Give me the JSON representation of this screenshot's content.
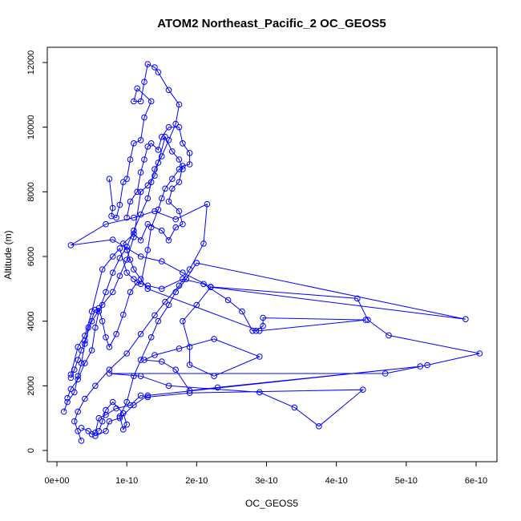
{
  "chart_data": {
    "type": "line",
    "title": "ATOM2 Northeast_Pacific_2 OC_GEOS5",
    "xlabel": "OC_GEOS5",
    "ylabel": "Altitude (m)",
    "xlim": [
      0,
      6e-10
    ],
    "ylim": [
      0,
      12000
    ],
    "xticks": [
      0,
      1e-10,
      2e-10,
      3e-10,
      4e-10,
      5e-10,
      6e-10
    ],
    "xtick_labels": [
      "0e+00",
      "1e-10",
      "2e-10",
      "3e-10",
      "4e-10",
      "5e-10",
      "6e-10"
    ],
    "yticks": [
      0,
      2000,
      4000,
      6000,
      8000,
      10000,
      12000
    ],
    "ytick_labels": [
      "0",
      "2000",
      "4000",
      "6000",
      "8000",
      "10000",
      "12000"
    ],
    "grid": false,
    "series": [
      {
        "color": "#0000ff",
        "points": [
          [
            3.5e-11,
            700
          ],
          [
            4.5e-11,
            600
          ],
          [
            5e-11,
            500
          ],
          [
            5.5e-11,
            550
          ],
          [
            6e-11,
            1000
          ],
          [
            7e-11,
            1100
          ],
          [
            8.5e-11,
            1300
          ],
          [
            1.05e-10,
            1400
          ],
          [
            1.2e-10,
            1700
          ],
          [
            1.3e-10,
            1650
          ],
          [
            1.9e-10,
            1780
          ],
          [
            4.38e-10,
            1880
          ],
          [
            3.75e-10,
            750
          ],
          [
            3.4e-10,
            1330
          ],
          [
            2.9e-10,
            1800
          ],
          [
            1.6e-10,
            2000
          ],
          [
            1.2e-10,
            2300
          ],
          [
            7.5e-11,
            2380
          ],
          [
            4.7e-10,
            2380
          ],
          [
            5.3e-10,
            2640
          ],
          [
            6.05e-10,
            3000
          ],
          [
            4.75e-10,
            3560
          ],
          [
            4.45e-10,
            4040
          ],
          [
            4.3e-10,
            4700
          ],
          [
            2.2e-10,
            5060
          ],
          [
            1.8e-10,
            5500
          ],
          [
            1.5e-10,
            5850
          ],
          [
            1.2e-10,
            6000
          ],
          [
            8e-11,
            6520
          ],
          [
            2e-11,
            6350
          ],
          [
            7e-11,
            7000
          ],
          [
            1.1e-10,
            7200
          ],
          [
            1.4e-10,
            7400
          ],
          [
            1.7e-10,
            7150
          ],
          [
            2.15e-10,
            7620
          ],
          [
            2.1e-10,
            6400
          ],
          [
            1.9e-10,
            5600
          ],
          [
            1.75e-10,
            5100
          ],
          [
            1.55e-10,
            4600
          ],
          [
            1.4e-10,
            4180
          ],
          [
            1.2e-10,
            3600
          ],
          [
            1e-10,
            3000
          ],
          [
            7.5e-11,
            2500
          ],
          [
            5.5e-11,
            2000
          ],
          [
            4e-11,
            1600
          ],
          [
            3e-11,
            1200
          ],
          [
            2.5e-11,
            900
          ],
          [
            3e-11,
            600
          ],
          [
            3.5e-11,
            300
          ]
        ]
      },
      {
        "color": "#0000ff",
        "points": [
          [
            1.5e-11,
            1620
          ],
          [
            2e-11,
            1900
          ],
          [
            3e-11,
            2200
          ],
          [
            4e-11,
            2700
          ],
          [
            5e-11,
            3100
          ],
          [
            5.5e-11,
            3800
          ],
          [
            6e-11,
            4300
          ],
          [
            7e-11,
            4900
          ],
          [
            8e-11,
            5500
          ],
          [
            9e-11,
            5950
          ],
          [
            1e-10,
            6300
          ],
          [
            1.1e-10,
            6800
          ],
          [
            1.2e-10,
            7300
          ],
          [
            1.3e-10,
            7800
          ],
          [
            1.35e-10,
            8300
          ],
          [
            1.4e-10,
            8700
          ],
          [
            1.5e-10,
            9100
          ],
          [
            1.6e-10,
            9600
          ],
          [
            1.7e-10,
            10100
          ],
          [
            1.75e-10,
            10700
          ],
          [
            1.6e-10,
            11150
          ],
          [
            1.45e-10,
            11700
          ],
          [
            1.4e-10,
            11850
          ],
          [
            1.3e-10,
            11950
          ],
          [
            1.25e-10,
            11400
          ],
          [
            1.2e-10,
            10800
          ],
          [
            1.1e-10,
            10800
          ],
          [
            1.15e-10,
            11200
          ],
          [
            1.35e-10,
            10800
          ],
          [
            1.25e-10,
            10300
          ],
          [
            1.2e-10,
            9600
          ],
          [
            1.1e-10,
            9500
          ],
          [
            1.05e-10,
            9000
          ],
          [
            1e-10,
            8400
          ],
          [
            9.5e-11,
            8300
          ],
          [
            9e-11,
            7600
          ],
          [
            8.5e-11,
            7200
          ],
          [
            7.8e-11,
            7250
          ],
          [
            8e-11,
            7500
          ],
          [
            7.5e-11,
            8400
          ]
        ]
      },
      {
        "color": "#0000ff",
        "points": [
          [
            1e-11,
            1200
          ],
          [
            1.5e-11,
            1500
          ],
          [
            2.5e-11,
            1800
          ],
          [
            3e-11,
            2300
          ],
          [
            3.5e-11,
            2700
          ],
          [
            4e-11,
            3300
          ],
          [
            4.5e-11,
            3800
          ],
          [
            5.5e-11,
            4350
          ],
          [
            6e-11,
            4400
          ],
          [
            6.5e-11,
            4000
          ],
          [
            7e-11,
            3500
          ],
          [
            7.5e-11,
            3200
          ],
          [
            8.5e-11,
            3600
          ],
          [
            9.5e-11,
            4200
          ],
          [
            1.05e-10,
            4900
          ],
          [
            1.15e-10,
            5200
          ],
          [
            1.3e-10,
            5100
          ],
          [
            1.5e-10,
            5000
          ],
          [
            1.8e-10,
            5300
          ],
          [
            2.1e-10,
            5150
          ],
          [
            2.45e-10,
            4650
          ],
          [
            2.65e-10,
            4300
          ],
          [
            2.8e-10,
            3700
          ],
          [
            2.85e-10,
            3700
          ],
          [
            2.95e-10,
            3850
          ],
          [
            2.95e-10,
            4100
          ],
          [
            4.42e-10,
            4040
          ],
          [
            2.9e-10,
            3700
          ],
          [
            1.3e-10,
            5000
          ],
          [
            1.2e-10,
            5300
          ],
          [
            1.1e-10,
            5600
          ],
          [
            1.05e-10,
            5900
          ],
          [
            1e-10,
            6200
          ],
          [
            9.5e-11,
            6400
          ],
          [
            1.1e-10,
            6700
          ],
          [
            1.2e-10,
            6500
          ],
          [
            1.3e-10,
            7000
          ],
          [
            1.5e-10,
            6800
          ],
          [
            1.6e-10,
            6500
          ],
          [
            1.7e-10,
            6900
          ],
          [
            1.8e-10,
            7000
          ],
          [
            1.75e-10,
            7400
          ],
          [
            1.6e-10,
            7700
          ],
          [
            1.65e-10,
            8100
          ],
          [
            1.75e-10,
            8300
          ],
          [
            1.8e-10,
            8800
          ],
          [
            1.9e-10,
            8850
          ],
          [
            1.9e-10,
            9200
          ],
          [
            1.8e-10,
            9500
          ],
          [
            1.75e-10,
            10000
          ],
          [
            1.6e-10,
            10000
          ],
          [
            1.5e-10,
            9700
          ],
          [
            1.45e-10,
            9300
          ],
          [
            1.35e-10,
            9500
          ],
          [
            1.3e-10,
            9400
          ],
          [
            1.25e-10,
            9000
          ],
          [
            1.2e-10,
            8600
          ],
          [
            1.15e-10,
            8000
          ],
          [
            1.05e-10,
            7700
          ],
          [
            1e-10,
            7200
          ]
        ]
      },
      {
        "color": "#0000ff",
        "points": [
          [
            6e-11,
            600
          ],
          [
            6.5e-11,
            900
          ],
          [
            7e-11,
            1250
          ],
          [
            8e-11,
            1500
          ],
          [
            9.5e-11,
            1150
          ],
          [
            1e-10,
            800
          ],
          [
            9.5e-11,
            650
          ],
          [
            9e-11,
            1050
          ],
          [
            1e-10,
            1500
          ],
          [
            1.1e-10,
            2300
          ],
          [
            1.2e-10,
            2800
          ],
          [
            1.35e-10,
            3500
          ],
          [
            1.45e-10,
            4000
          ],
          [
            1.6e-10,
            4500
          ],
          [
            1.7e-10,
            4900
          ],
          [
            1.85e-10,
            5300
          ],
          [
            2e-10,
            5800
          ],
          [
            5.85e-10,
            4060
          ],
          [
            2.2e-10,
            5050
          ],
          [
            2e-10,
            4500
          ],
          [
            1.8e-10,
            4000
          ],
          [
            1.9e-10,
            3200
          ],
          [
            1.9e-10,
            2650
          ],
          [
            2.25e-10,
            2300
          ],
          [
            2.9e-10,
            2900
          ],
          [
            2.25e-10,
            3450
          ],
          [
            1.75e-10,
            3150
          ],
          [
            1.4e-10,
            2950
          ],
          [
            1.25e-10,
            2800
          ],
          [
            1.5e-10,
            2750
          ],
          [
            1.7e-10,
            2500
          ],
          [
            1.9e-10,
            1850
          ],
          [
            2.3e-10,
            1950
          ],
          [
            5.2e-10,
            2600
          ],
          [
            1.3e-10,
            1700
          ],
          [
            1.1e-10,
            1400
          ],
          [
            9e-11,
            1000
          ],
          [
            7.5e-11,
            900
          ],
          [
            7e-11,
            600
          ],
          [
            5.5e-11,
            450
          ]
        ]
      },
      {
        "color": "#0000ff",
        "points": [
          [
            2e-11,
            2350
          ],
          [
            3e-11,
            3200
          ],
          [
            4e-11,
            3550
          ],
          [
            5e-11,
            4300
          ],
          [
            6.5e-11,
            5600
          ],
          [
            8e-11,
            6000
          ],
          [
            9e-11,
            6250
          ],
          [
            1e-10,
            5500
          ],
          [
            1.1e-10,
            5300
          ],
          [
            1.2e-10,
            5150
          ],
          [
            1.3e-10,
            6200
          ],
          [
            1.35e-10,
            6900
          ],
          [
            1.45e-10,
            7450
          ],
          [
            1.5e-10,
            7800
          ],
          [
            1.55e-10,
            8100
          ],
          [
            1.65e-10,
            8400
          ],
          [
            1.75e-10,
            8700
          ],
          [
            1.8e-10,
            8700
          ],
          [
            1.75e-10,
            9000
          ],
          [
            1.65e-10,
            9250
          ],
          [
            1.55e-10,
            9700
          ],
          [
            1.45e-10,
            8900
          ],
          [
            1.4e-10,
            8500
          ],
          [
            1.3e-10,
            8200
          ],
          [
            1.2e-10,
            8000
          ],
          [
            1.1e-10,
            6600
          ],
          [
            1e-10,
            5900
          ],
          [
            9e-11,
            5400
          ],
          [
            8e-11,
            4900
          ],
          [
            6.5e-11,
            4500
          ],
          [
            5e-11,
            4000
          ],
          [
            4e-11,
            3400
          ],
          [
            3.5e-11,
            3100
          ],
          [
            3e-11,
            2800
          ],
          [
            2.5e-11,
            2500
          ],
          [
            2e-11,
            2250
          ]
        ]
      }
    ]
  }
}
